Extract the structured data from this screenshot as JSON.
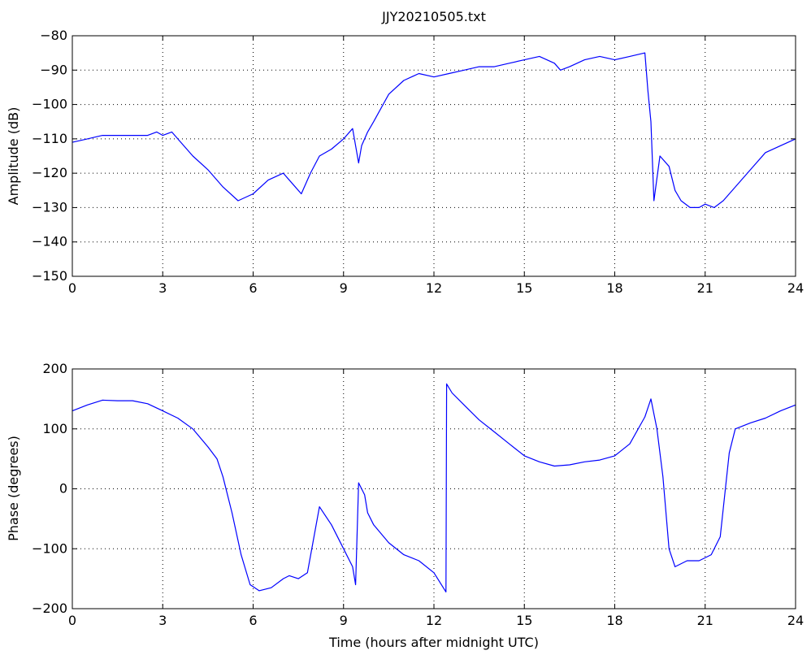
{
  "chart_data": [
    {
      "type": "line",
      "title": "JJY20210505.txt",
      "xlabel": "",
      "ylabel": "Amplitude (dB)",
      "xlim": [
        0,
        24
      ],
      "ylim": [
        -150,
        -80
      ],
      "x_ticks": [
        "0",
        "3",
        "6",
        "9",
        "12",
        "15",
        "18",
        "21",
        "24"
      ],
      "y_ticks": [
        "−80",
        "−90",
        "−100",
        "−110",
        "−120",
        "−130",
        "−140",
        "−150"
      ],
      "grid": true,
      "color": "#0000ff",
      "series": [
        {
          "x": [
            0,
            0.5,
            1,
            1.5,
            2,
            2.5,
            2.8,
            3,
            3.3,
            3.6,
            4,
            4.5,
            5,
            5.5,
            6,
            6.5,
            7,
            7.3,
            7.6,
            7.9,
            8.2,
            8.6,
            9,
            9.3,
            9.5,
            9.6,
            9.8,
            10,
            10.5,
            11,
            11.5,
            12,
            12.5,
            13,
            13.5,
            14,
            14.5,
            15,
            15.5,
            16,
            16.2,
            16.5,
            17,
            17.5,
            18,
            18.5,
            19,
            19.1,
            19.2,
            19.3,
            19.5,
            19.8,
            20,
            20.2,
            20.5,
            20.8,
            21,
            21.3,
            21.6,
            22,
            22.5,
            23,
            23.5,
            24
          ],
          "y": [
            -111,
            -110,
            -109,
            -109,
            -109,
            -109,
            -108,
            -109,
            -108,
            -111,
            -115,
            -119,
            -124,
            -128,
            -126,
            -122,
            -120,
            -123,
            -126,
            -120,
            -115,
            -113,
            -110,
            -107,
            -117,
            -112,
            -108,
            -105,
            -97,
            -93,
            -91,
            -92,
            -91,
            -90,
            -89,
            -89,
            -88,
            -87,
            -86,
            -88,
            -90,
            -89,
            -87,
            -86,
            -87,
            -86,
            -85,
            -96,
            -105,
            -128,
            -115,
            -118,
            -125,
            -128,
            -130,
            -130,
            -129,
            -130,
            -128,
            -124,
            -119,
            -114,
            -112,
            -110
          ]
        }
      ]
    },
    {
      "type": "line",
      "title": "",
      "xlabel": "Time (hours after midnight UTC)",
      "ylabel": "Phase (degrees)",
      "xlim": [
        0,
        24
      ],
      "ylim": [
        -200,
        200
      ],
      "x_ticks": [
        "0",
        "3",
        "6",
        "9",
        "12",
        "15",
        "18",
        "21",
        "24"
      ],
      "y_ticks": [
        "200",
        "100",
        "0",
        "−100",
        "−200"
      ],
      "grid": true,
      "color": "#0000ff",
      "series": [
        {
          "x": [
            0,
            0.5,
            1,
            1.5,
            2,
            2.5,
            3,
            3.5,
            4,
            4.5,
            4.8,
            5,
            5.3,
            5.6,
            5.9,
            6.2,
            6.6,
            7,
            7.2,
            7.5,
            7.8,
            8.2,
            8.6,
            9,
            9.3,
            9.4,
            9.5,
            9.7,
            9.8,
            10,
            10.5,
            11,
            11.5,
            12,
            12.4,
            12.42,
            12.6,
            13,
            13.5,
            14,
            14.5,
            15,
            15.5,
            16,
            16.5,
            17,
            17.5,
            18,
            18.5,
            19,
            19.2,
            19.4,
            19.6,
            19.8,
            20,
            20.4,
            20.8,
            21.2,
            21.5,
            21.8,
            22,
            22.5,
            23,
            23.5,
            24
          ],
          "y": [
            130,
            140,
            148,
            147,
            147,
            142,
            130,
            118,
            100,
            70,
            50,
            20,
            -40,
            -110,
            -160,
            -170,
            -165,
            -150,
            -145,
            -150,
            -140,
            -30,
            -60,
            -100,
            -130,
            -160,
            10,
            -10,
            -40,
            -60,
            -90,
            -110,
            -120,
            -140,
            -172,
            175,
            160,
            140,
            115,
            95,
            75,
            55,
            45,
            38,
            40,
            45,
            48,
            55,
            75,
            120,
            150,
            100,
            20,
            -100,
            -130,
            -120,
            -120,
            -110,
            -80,
            60,
            100,
            110,
            118,
            130,
            140
          ]
        }
      ]
    }
  ]
}
